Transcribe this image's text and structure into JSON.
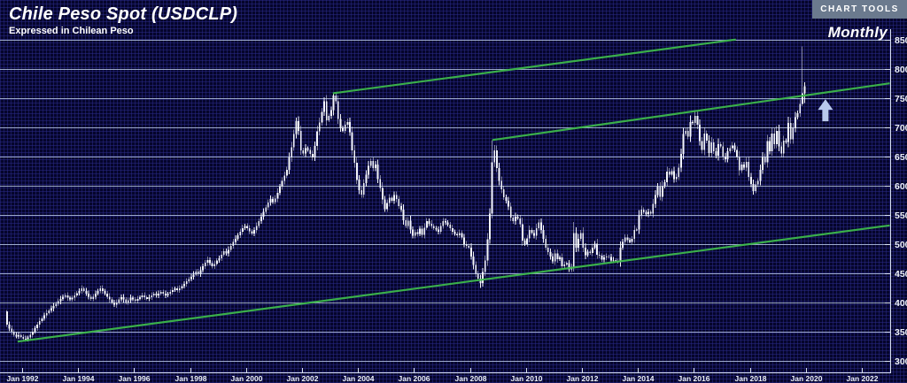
{
  "header": {
    "title": "Chile Peso Spot (USDCLP)",
    "subtitle": "Expressed in Chilean Peso",
    "tools_button": "CHART TOOLS",
    "interval_label": "Monthly"
  },
  "colors": {
    "background": "#05052b",
    "minor_grid": "#2e2e94",
    "major_grid": "#b6c5e2",
    "axis": "#d8e0f0",
    "tick_label": "#eef2fa",
    "candle": "#f3f5fb",
    "trendline_green": "#3db84b",
    "button_bg": "#6b7a8e",
    "button_text": "#ffffff",
    "arrow": "#b9c9ec"
  },
  "y_axis": {
    "tick_labels": [
      850,
      800,
      750,
      700,
      650,
      600,
      550,
      500,
      450,
      400,
      350,
      300
    ]
  },
  "x_axis": {
    "tick_labels": [
      "Jan 1992",
      "Jan 1994",
      "Jan 1996",
      "Jan 1998",
      "Jan 2000",
      "Jan 2002",
      "Jan 2004",
      "Jan 2006",
      "Jan 2008",
      "Jan 2010",
      "Jan 2012",
      "Jan 2014",
      "Jan 2016",
      "Jan 2018",
      "Jan 2020",
      "Jan 2022"
    ]
  },
  "chart_data": {
    "type": "ohlc-candlestick",
    "title": "Chile Peso Spot (USDCLP)",
    "series_name": "USDCLP monthly close",
    "interval": "monthly",
    "start": "1991-06",
    "end": "2019-12",
    "ylim": [
      300,
      862
    ],
    "xlim_years": [
      1991.4,
      2023.0
    ],
    "grid": "horizontal-major",
    "closes_by_year": {
      "1991": [
        362,
        355,
        350,
        345,
        342,
        344,
        341
      ],
      "1992": [
        338,
        336,
        340,
        345,
        350,
        356,
        362,
        368,
        373,
        378,
        382,
        386
      ],
      "1993": [
        390,
        394,
        398,
        402,
        406,
        410,
        412,
        408,
        405,
        408,
        412,
        416
      ],
      "1994": [
        420,
        424,
        420,
        415,
        410,
        406,
        410,
        415,
        420,
        424,
        420,
        415
      ],
      "1995": [
        410,
        405,
        400,
        396,
        400,
        405,
        409,
        405,
        400,
        404,
        408,
        405
      ],
      "1996": [
        403,
        406,
        409,
        412,
        409,
        406,
        409,
        412,
        415,
        412,
        415,
        418
      ],
      "1997": [
        415,
        412,
        415,
        418,
        421,
        424,
        421,
        424,
        428,
        432,
        436,
        440
      ],
      "1998": [
        444,
        448,
        453,
        449,
        455,
        462,
        468,
        473,
        467,
        462,
        466,
        472
      ],
      "1999": [
        476,
        482,
        488,
        484,
        490,
        497,
        504,
        509,
        515,
        521,
        527,
        531
      ],
      "2000": [
        527,
        522,
        518,
        524,
        531,
        539,
        547,
        555,
        563,
        571,
        577,
        572
      ],
      "2001": [
        578,
        588,
        598,
        608,
        617,
        627,
        648,
        666,
        688,
        710,
        694,
        660
      ],
      "2002": [
        655,
        664,
        661,
        654,
        648,
        668,
        693,
        708,
        726,
        744,
        712,
        719
      ],
      "2003": [
        729,
        754,
        744,
        714,
        699,
        694,
        704,
        709,
        691,
        660,
        639,
        610
      ],
      "2004": [
        592,
        585,
        604,
        619,
        634,
        642,
        630,
        636,
        611,
        596,
        576,
        560
      ],
      "2005": [
        570,
        579,
        574,
        584,
        577,
        565,
        559,
        541,
        531,
        540,
        525,
        514
      ],
      "2006": [
        520,
        517,
        526,
        516,
        528,
        539,
        535,
        531,
        527,
        525,
        521,
        531
      ],
      "2007": [
        539,
        537,
        533,
        527,
        521,
        517,
        515,
        519,
        511,
        500,
        497,
        494
      ],
      "2008": [
        479,
        464,
        449,
        441,
        433,
        452,
        472,
        508,
        552,
        640,
        660,
        630
      ],
      "2009": [
        608,
        594,
        580,
        574,
        564,
        545,
        539,
        547,
        544,
        534,
        506,
        500
      ],
      "2010": [
        510,
        524,
        519,
        514,
        527,
        537,
        524,
        509,
        494,
        486,
        479,
        470
      ],
      "2011": [
        484,
        474,
        477,
        462,
        465,
        467,
        457,
        461,
        519,
        494,
        509,
        519
      ],
      "2012": [
        494,
        481,
        487,
        485,
        494,
        501,
        482,
        480,
        473,
        477,
        479,
        478
      ],
      "2013": [
        472,
        473,
        471,
        470,
        494,
        504,
        511,
        507,
        504,
        509,
        524,
        525
      ],
      "2014": [
        549,
        559,
        554,
        551,
        555,
        552,
        569,
        584,
        598,
        581,
        599,
        606
      ],
      "2015": [
        624,
        619,
        625,
        611,
        615,
        631,
        654,
        688,
        694,
        684,
        709,
        707
      ],
      "2016": [
        719,
        704,
        676,
        661,
        689,
        677,
        656,
        674,
        659,
        651,
        671,
        667
      ],
      "2017": [
        650,
        645,
        659,
        664,
        669,
        661,
        649,
        626,
        636,
        631,
        641,
        615
      ],
      "2018": [
        603,
        591,
        602,
        608,
        627,
        649,
        640,
        676,
        659,
        689,
        671,
        694
      ],
      "2019": [
        667,
        655,
        677,
        675,
        707,
        679,
        699,
        717,
        724,
        740,
        758,
        770
      ]
    },
    "wick_overrides": {
      "1991-06": {
        "open": 385,
        "high": 387,
        "low": 358
      },
      "1992-02": {
        "low": 333
      },
      "2001-10": {
        "high": 716
      },
      "2002-10": {
        "high": 751
      },
      "2003-02": {
        "high": 758
      },
      "2008-05": {
        "low": 425
      },
      "2008-10": {
        "high": 678
      },
      "2011-09": {
        "high": 538,
        "low": 453
      },
      "2016-01": {
        "high": 729
      },
      "2019-11": {
        "high": 838,
        "low": 736
      },
      "2019-12": {
        "high": 777,
        "low": 741
      }
    },
    "trendlines": [
      {
        "name": "lower-channel-line",
        "t1": 1991.84,
        "p1": 333,
        "t2": 2023.0,
        "p2": 532
      },
      {
        "name": "upper-channel-line",
        "t1": 2003.1,
        "p1": 758,
        "t2": 2017.5,
        "p2": 850
      },
      {
        "name": "mid-channel-line",
        "t1": 2008.8,
        "p1": 678,
        "t2": 2023.0,
        "p2": 775
      }
    ],
    "annotations": [
      {
        "symbol": "up-arrow",
        "t": 2020.7,
        "price": 748
      }
    ]
  }
}
